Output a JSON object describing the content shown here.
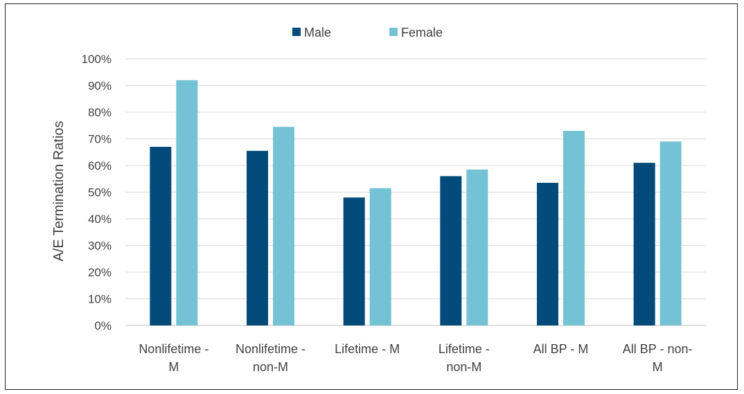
{
  "chart_data": {
    "type": "bar",
    "title": "",
    "xlabel": "",
    "ylabel": "A/E Termination Ratios",
    "ylim": [
      0,
      100
    ],
    "y_ticks": [
      "0%",
      "10%",
      "20%",
      "30%",
      "40%",
      "50%",
      "60%",
      "70%",
      "80%",
      "90%",
      "100%"
    ],
    "grid": true,
    "legend_position": "top",
    "categories": [
      [
        "Nonlifetime -",
        "M"
      ],
      [
        "Nonlifetime -",
        "non-M"
      ],
      [
        "Lifetime - M"
      ],
      [
        "Lifetime -",
        "non-M"
      ],
      [
        "All BP - M"
      ],
      [
        "All BP - non-",
        "M"
      ]
    ],
    "series": [
      {
        "name": "Male",
        "color": "#004b7a",
        "values": [
          67,
          65.5,
          48,
          56,
          53.5,
          61
        ]
      },
      {
        "name": "Female",
        "color": "#74c3d4",
        "values": [
          92,
          74.5,
          51.5,
          58.5,
          73,
          69
        ]
      }
    ]
  }
}
